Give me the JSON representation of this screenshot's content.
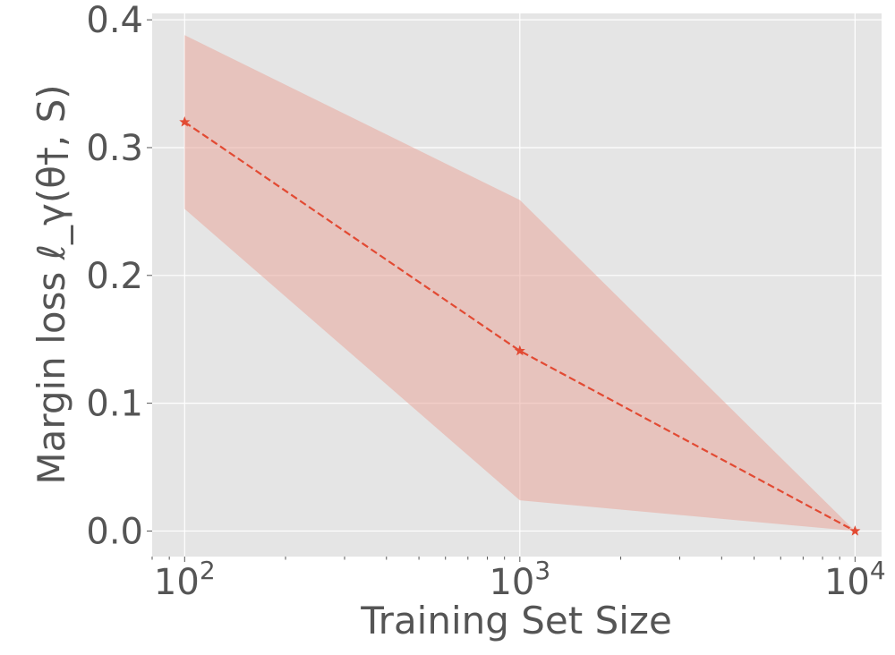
{
  "chart_data": {
    "type": "line",
    "xscale": "log",
    "xlabel": "Training Set Size",
    "ylabel": "Margin loss ℓ_γ(θ†, S)",
    "ylim": [
      -0.02,
      0.405
    ],
    "xlim": [
      80,
      12000
    ],
    "grid": true,
    "x": [
      100,
      1000,
      10000
    ],
    "x_tick_labels": [
      {
        "base": "10",
        "exp": "2"
      },
      {
        "base": "10",
        "exp": "3"
      },
      {
        "base": "10",
        "exp": "4"
      }
    ],
    "y_ticks": [
      0.0,
      0.1,
      0.2,
      0.3,
      0.4
    ],
    "y_tick_labels": [
      "0.0",
      "0.1",
      "0.2",
      "0.3",
      "0.4"
    ],
    "series": [
      {
        "values": [
          0.32,
          0.141,
          0.0
        ],
        "lower": [
          0.252,
          0.024,
          0.0
        ],
        "upper": [
          0.388,
          0.259,
          0.0
        ],
        "color": "#E24A33",
        "line_style": "dashed",
        "marker": "star"
      }
    ],
    "colors": {
      "background": "#E5E5E5",
      "grid": "#FFFFFF",
      "band": "#E9A89C",
      "text": "#555555"
    }
  }
}
